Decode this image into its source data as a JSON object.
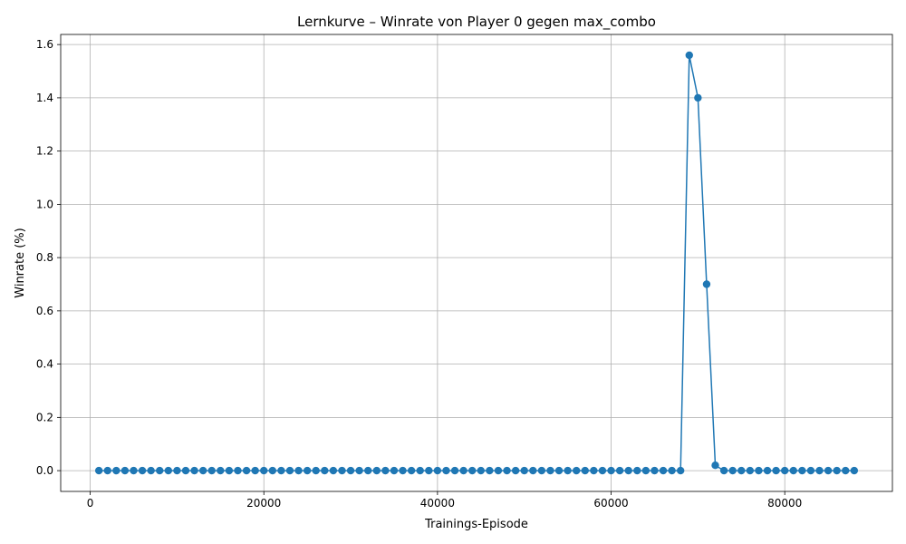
{
  "chart_data": {
    "type": "line",
    "title": "Lernkurve – Winrate von Player 0 gegen max_combo",
    "xlabel": "Trainings-Episode",
    "ylabel": "Winrate (%)",
    "xlim": [
      -3400,
      92400
    ],
    "ylim": [
      -0.078,
      1.638
    ],
    "xticks": [
      0,
      20000,
      40000,
      60000,
      80000
    ],
    "xtick_labels": [
      "0",
      "20000",
      "40000",
      "60000",
      "80000"
    ],
    "yticks": [
      0.0,
      0.2,
      0.4,
      0.6,
      0.8,
      1.0,
      1.2,
      1.4,
      1.6
    ],
    "ytick_labels": [
      "0.0",
      "0.2",
      "0.4",
      "0.6",
      "0.8",
      "1.0",
      "1.2",
      "1.4",
      "1.6"
    ],
    "grid": true,
    "marker": "circle",
    "color": "#1f77b4",
    "series": [
      {
        "name": "",
        "x": [
          1000,
          2000,
          3000,
          4000,
          5000,
          6000,
          7000,
          8000,
          9000,
          10000,
          11000,
          12000,
          13000,
          14000,
          15000,
          16000,
          17000,
          18000,
          19000,
          20000,
          21000,
          22000,
          23000,
          24000,
          25000,
          26000,
          27000,
          28000,
          29000,
          30000,
          31000,
          32000,
          33000,
          34000,
          35000,
          36000,
          37000,
          38000,
          39000,
          40000,
          41000,
          42000,
          43000,
          44000,
          45000,
          46000,
          47000,
          48000,
          49000,
          50000,
          51000,
          52000,
          53000,
          54000,
          55000,
          56000,
          57000,
          58000,
          59000,
          60000,
          61000,
          62000,
          63000,
          64000,
          65000,
          66000,
          67000,
          68000,
          69000,
          70000,
          71000,
          72000,
          73000,
          74000,
          75000,
          76000,
          77000,
          78000,
          79000,
          80000,
          81000,
          82000,
          83000,
          84000,
          85000,
          86000,
          87000,
          88000
        ],
        "y": [
          0,
          0,
          0,
          0,
          0,
          0,
          0,
          0,
          0,
          0,
          0,
          0,
          0,
          0,
          0,
          0,
          0,
          0,
          0,
          0,
          0,
          0,
          0,
          0,
          0,
          0,
          0,
          0,
          0,
          0,
          0,
          0,
          0,
          0,
          0,
          0,
          0,
          0,
          0,
          0,
          0,
          0,
          0,
          0,
          0,
          0,
          0,
          0,
          0,
          0,
          0,
          0,
          0,
          0,
          0,
          0,
          0,
          0,
          0,
          0,
          0,
          0,
          0,
          0,
          0,
          0,
          0,
          0,
          1.56,
          1.4,
          0.7,
          0.02,
          0,
          0,
          0,
          0,
          0,
          0,
          0,
          0,
          0,
          0,
          0,
          0,
          0,
          0,
          0,
          0
        ]
      }
    ]
  }
}
